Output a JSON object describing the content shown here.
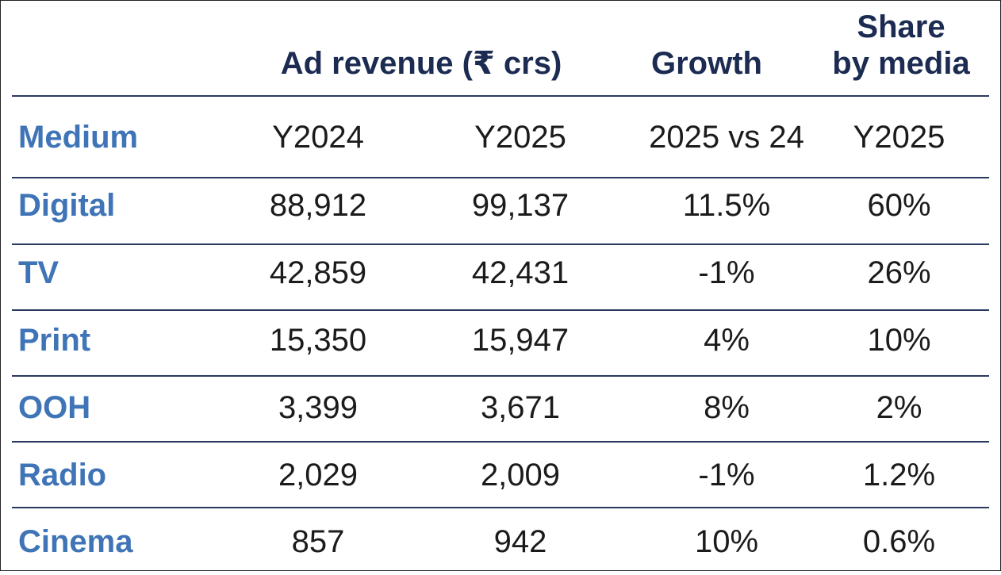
{
  "table_headers": {
    "ad_revenue": "Ad revenue (₹ crs)",
    "growth": "Growth",
    "share_line1": "Share",
    "share_line2": "by media"
  },
  "chart_data": {
    "type": "table",
    "columns": [
      "Medium",
      "Y2024",
      "Y2025",
      "2025 vs 24",
      "Y2025"
    ],
    "rows": [
      [
        "Digital",
        "88,912",
        "99,137",
        "11.5%",
        "60%"
      ],
      [
        "TV",
        "42,859",
        "42,431",
        "-1%",
        "26%"
      ],
      [
        "Print",
        "15,350",
        "15,947",
        "4%",
        "10%"
      ],
      [
        "OOH",
        "3,399",
        "3,671",
        "8%",
        "2%"
      ],
      [
        "Radio",
        "2,029",
        "2,009",
        "-1%",
        "1.2%"
      ],
      [
        "Cinema",
        "857",
        "942",
        "10%",
        "0.6%"
      ]
    ]
  },
  "colors": {
    "header_text": "#1c2b52",
    "medium_label": "#3f74b6",
    "rule": "#2a3a5e",
    "value_text": "#1b1b1b"
  }
}
